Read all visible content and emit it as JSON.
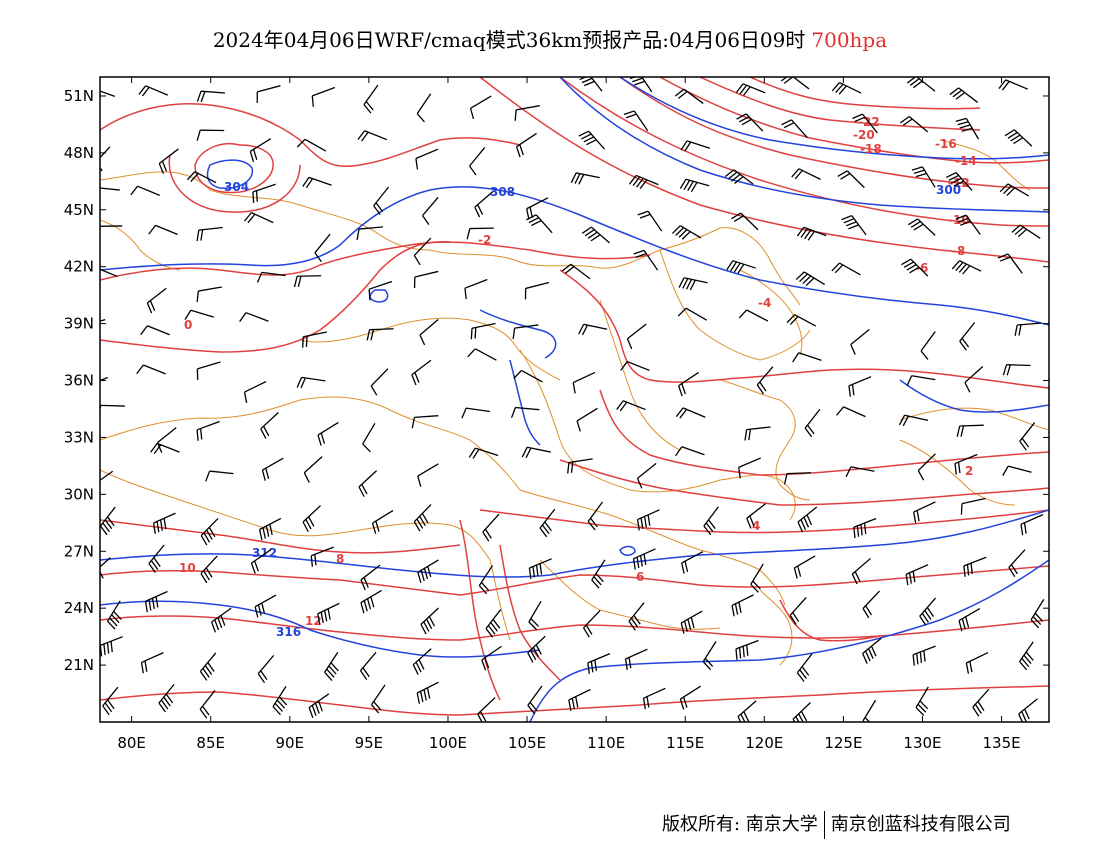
{
  "title": {
    "main": "2024年04月06日WRF/cmaq模式36km预报产品:04月06日09时",
    "level": "700hpa"
  },
  "axes": {
    "lat_labels": [
      "21N",
      "24N",
      "27N",
      "30N",
      "33N",
      "36N",
      "39N",
      "42N",
      "45N",
      "48N",
      "51N"
    ],
    "lat_values": [
      21,
      24,
      27,
      30,
      33,
      36,
      39,
      42,
      45,
      48,
      51
    ],
    "lon_labels": [
      "80E",
      "85E",
      "90E",
      "95E",
      "100E",
      "105E",
      "110E",
      "115E",
      "120E",
      "125E",
      "130E",
      "135E"
    ],
    "lon_values": [
      80,
      85,
      90,
      95,
      100,
      105,
      110,
      115,
      120,
      125,
      130,
      135
    ],
    "lon_range": [
      78,
      138
    ],
    "lat_range": [
      18,
      52
    ]
  },
  "colors": {
    "temperature": "#e04040",
    "geopotential": "#2244dd",
    "boundary": "#e0902a",
    "wind": "#000000",
    "title_level": "#e03030"
  },
  "layers": {
    "temperature_labels": [
      "-22",
      "-20",
      "-18",
      "-16",
      "-14",
      "-12",
      "-10",
      "-8",
      "-6",
      "-4",
      "-2",
      "0",
      "2",
      "4",
      "6",
      "8",
      "10",
      "12"
    ],
    "geopotential_labels": [
      "300",
      "304",
      "308",
      "312",
      "316"
    ]
  },
  "footer": {
    "left": "版权所有: 南京大学",
    "right": "南京创蓝科技有限公司"
  }
}
